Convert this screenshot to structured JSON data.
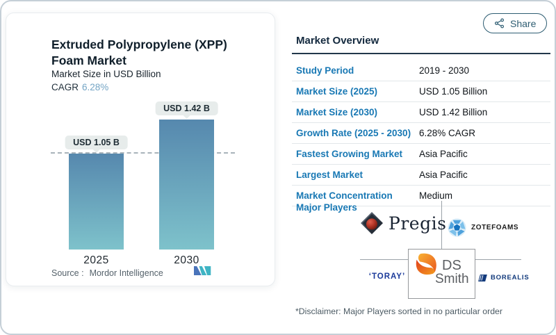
{
  "header": {
    "share_label": "Share"
  },
  "chart_card": {
    "title": "Extruded Polypropylene (XPP) Foam Market",
    "subtitle": "Market Size in USD Billion",
    "cagr_label": "CAGR",
    "cagr_value": "6.28%",
    "source_label": "Source :",
    "source_value": "Mordor Intelligence"
  },
  "chart_data": {
    "type": "bar",
    "title": "Extruded Polypropylene (XPP) Foam Market",
    "ylabel": "Market Size in USD Billion",
    "categories": [
      "2025",
      "2030"
    ],
    "values": [
      1.05,
      1.42
    ],
    "value_labels": [
      "USD 1.05 B",
      "USD 1.42 B"
    ],
    "unit": "USD Billion",
    "cagr_percent": 6.28,
    "reference_line_value": 1.05,
    "ylim": [
      0,
      1.55
    ],
    "grid": "off",
    "legend": "none",
    "bar_gradient_top": "#5688AE",
    "bar_gradient_bottom": "#7EC2CB"
  },
  "overview": {
    "title": "Market Overview",
    "rows": [
      {
        "label": "Study Period",
        "value": "2019 - 2030"
      },
      {
        "label": "Market Size (2025)",
        "value": "USD 1.05 Billion"
      },
      {
        "label": "Market Size (2030)",
        "value": "USD 1.42 Billion"
      },
      {
        "label": "Growth Rate (2025 - 2030)",
        "value": "6.28% CAGR"
      },
      {
        "label": "Fastest Growing Market",
        "value": "Asia Pacific"
      },
      {
        "label": "Largest Market",
        "value": "Asia Pacific"
      },
      {
        "label": "Market Concentration",
        "value": "Medium"
      }
    ],
    "major_players_label": "Major Players",
    "players": [
      {
        "name": "Pregis",
        "display": "Pregis"
      },
      {
        "name": "Zotefoams",
        "display": "ZOTEFOAMS"
      },
      {
        "name": "Toray",
        "display": "‘TORAY’"
      },
      {
        "name": "DS Smith",
        "display_line1": "DS",
        "display_line2": "Smith"
      },
      {
        "name": "Borealis",
        "display": "BOREALIS"
      }
    ],
    "disclaimer": "*Disclaimer: Major Players sorted in no particular order"
  },
  "colors": {
    "label_blue": "#1878B4",
    "heading_navy": "#13293E",
    "cagr_blue": "#74A5C5",
    "share_teal": "#2E5D72",
    "bar_top": "#5688AE",
    "bar_bottom": "#7EC2CB",
    "mi_logo_blue": "#4A74BA",
    "mi_logo_teal": "#3FB4C4"
  }
}
